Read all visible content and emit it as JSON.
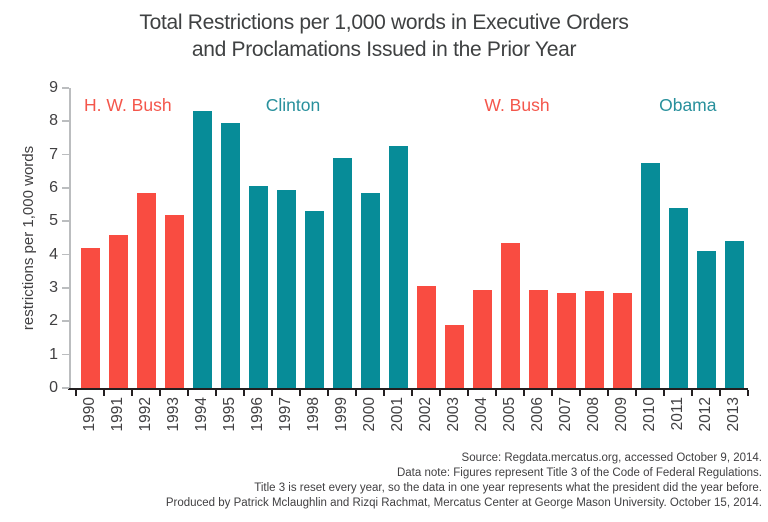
{
  "title_lines": [
    "Total Restrictions per 1,000 words in Executive Orders",
    "and Proclamations Issued in the Prior Year"
  ],
  "footer_lines": [
    "Source: Regdata.mercatus.org, accessed October 9, 2014.",
    "Data note: Figures represent Title 3 of the Code of Federal Regulations.",
    "Title 3 is reset every year, so the data in one year represents what the president did the year before.",
    "Produced by Patrick Mclaughlin and Rizqi Rachmat, Mercatus Center at George Mason University. October 15, 2014."
  ],
  "colors": {
    "red_bar": "#f94c41",
    "teal_bar": "#078c98",
    "red_label": "#f4564b",
    "teal_label": "#28909c",
    "text_dark": "#414042",
    "axis_gray": "#bbbdbf",
    "axis_black": "#231f20",
    "background": "#ffffff"
  },
  "chart_data": {
    "type": "bar",
    "title": "Total Restrictions per 1,000 words in Executive Orders and Proclamations Issued in the Prior Year",
    "xlabel": "",
    "ylabel": "restrictions per 1,000 words",
    "ylim": [
      0,
      9
    ],
    "yticks": [
      0,
      1,
      2,
      3,
      4,
      5,
      6,
      7,
      8,
      9
    ],
    "grid": false,
    "legend_position": "none",
    "categories": [
      "1990",
      "1991",
      "1992",
      "1993",
      "1994",
      "1995",
      "1996",
      "1997",
      "1998",
      "1999",
      "2000",
      "2001",
      "2002",
      "2003",
      "2004",
      "2005",
      "2006",
      "2007",
      "2008",
      "2009",
      "2010",
      "2011",
      "2012",
      "2013"
    ],
    "values": [
      4.2,
      4.6,
      5.85,
      5.2,
      8.3,
      7.95,
      6.05,
      5.95,
      5.3,
      6.9,
      5.85,
      7.25,
      3.05,
      1.9,
      2.95,
      4.35,
      2.95,
      2.85,
      2.9,
      2.85,
      6.75,
      5.4,
      4.1,
      4.4
    ],
    "groups": [
      {
        "label": "H. W. Bush",
        "start_index": 0,
        "end_index": 3,
        "bar_color": "#f94c41",
        "label_color": "#f4564b",
        "label_center_slot": 1.85
      },
      {
        "label": "Clinton",
        "start_index": 4,
        "end_index": 11,
        "bar_color": "#078c98",
        "label_color": "#28909c",
        "label_center_slot": 7.75
      },
      {
        "label": "W. Bush",
        "start_index": 12,
        "end_index": 19,
        "bar_color": "#f94c41",
        "label_color": "#f4564b",
        "label_center_slot": 15.75
      },
      {
        "label": "Obama",
        "start_index": 20,
        "end_index": 23,
        "bar_color": "#078c98",
        "label_color": "#28909c",
        "label_center_slot": 21.85
      }
    ]
  }
}
